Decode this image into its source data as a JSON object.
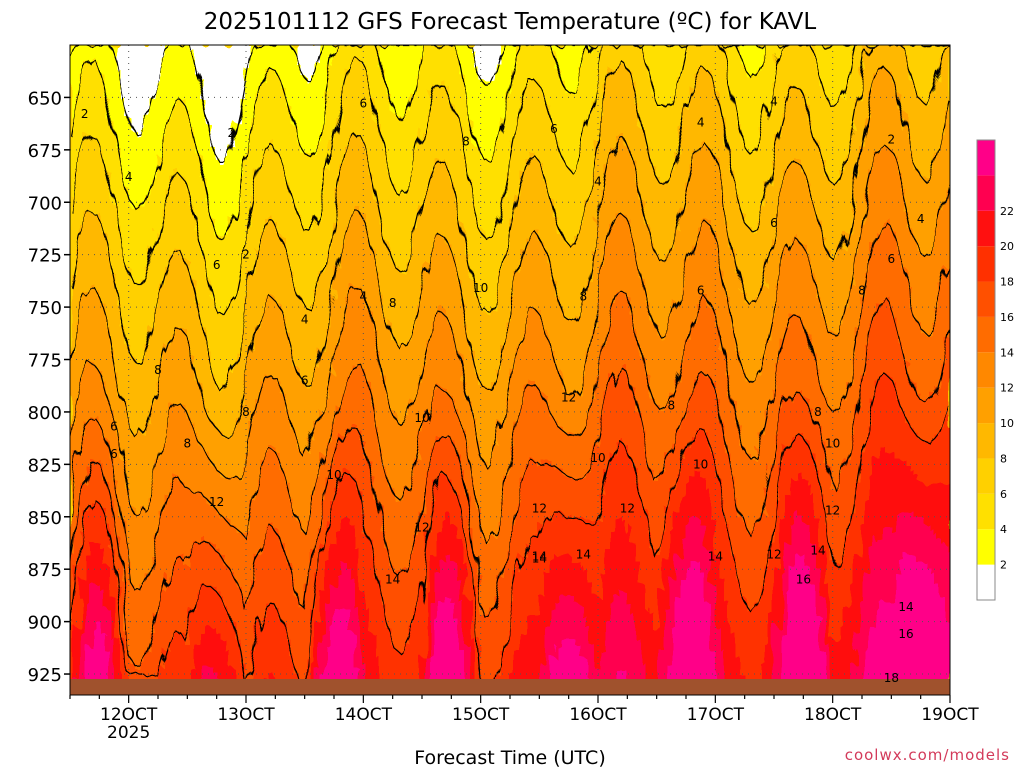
{
  "chart_data": {
    "type": "heatmap",
    "title": "2025101112 GFS Forecast Temperature (ºC) for KAVL",
    "xlabel": "Forecast Time (UTC)",
    "ylabel": "",
    "credit": "coolwx.com/models",
    "x_range": [
      "11 OCT 2025 12Z",
      "19 OCT 2025 00Z"
    ],
    "x_ticks": [
      {
        "label": "12OCT",
        "sublabel": "2025"
      },
      {
        "label": "13OCT",
        "sublabel": ""
      },
      {
        "label": "14OCT",
        "sublabel": ""
      },
      {
        "label": "15OCT",
        "sublabel": ""
      },
      {
        "label": "16OCT",
        "sublabel": ""
      },
      {
        "label": "17OCT",
        "sublabel": ""
      },
      {
        "label": "18OCT",
        "sublabel": ""
      },
      {
        "label": "19OCT",
        "sublabel": ""
      }
    ],
    "y_ticks": [
      "650",
      "675",
      "700",
      "725",
      "750",
      "775",
      "800",
      "825",
      "850",
      "875",
      "900",
      "925"
    ],
    "ylim": [
      625,
      935
    ],
    "y_axis_inverted": true,
    "grid": true,
    "colorbar": {
      "position": "right",
      "labels": [
        "2",
        "4",
        "6",
        "8",
        "10",
        "12",
        "14",
        "16",
        "18",
        "20",
        "22"
      ],
      "colors": [
        "#ffffff",
        "#ffff00",
        "#ffe000",
        "#ffd000",
        "#ffb800",
        "#ffa000",
        "#ff8800",
        "#ff6c00",
        "#ff5000",
        "#ff3000",
        "#ff1010",
        "#ff0050",
        "#ff0088"
      ]
    },
    "contour_interval": 2,
    "contour_labels": [
      {
        "value": "2",
        "time": "11 OCT 15Z",
        "level": 658
      },
      {
        "value": "2",
        "time": "12 OCT 21Z",
        "level": 667
      },
      {
        "value": "2",
        "time": "13 OCT 00Z",
        "level": 725
      },
      {
        "value": "2",
        "time": "18 OCT 12Z",
        "level": 670
      },
      {
        "value": "4",
        "time": "12 OCT 00Z",
        "level": 688
      },
      {
        "value": "4",
        "time": "13 OCT 12Z",
        "level": 756
      },
      {
        "value": "4",
        "time": "14 OCT 00Z",
        "level": 745
      },
      {
        "value": "4",
        "time": "16 OCT 00Z",
        "level": 690
      },
      {
        "value": "4",
        "time": "16 OCT 21Z",
        "level": 662
      },
      {
        "value": "4",
        "time": "17 OCT 12Z",
        "level": 652
      },
      {
        "value": "4",
        "time": "18 OCT 18Z",
        "level": 708
      },
      {
        "value": "6",
        "time": "11 OCT 21Z",
        "level": 820
      },
      {
        "value": "6",
        "time": "11 OCT 21Z",
        "level": 807
      },
      {
        "value": "6",
        "time": "12 OCT 18Z",
        "level": 730
      },
      {
        "value": "6",
        "time": "13 OCT 12Z",
        "level": 785
      },
      {
        "value": "6",
        "time": "14 OCT 00Z",
        "level": 653
      },
      {
        "value": "6",
        "time": "15 OCT 15Z",
        "level": 665
      },
      {
        "value": "6",
        "time": "16 OCT 21Z",
        "level": 742
      },
      {
        "value": "6",
        "time": "17 OCT 12Z",
        "level": 710
      },
      {
        "value": "6",
        "time": "18 OCT 12Z",
        "level": 727
      },
      {
        "value": "8",
        "time": "12 OCT 06Z",
        "level": 780
      },
      {
        "value": "8",
        "time": "12 OCT 12Z",
        "level": 815
      },
      {
        "value": "8",
        "time": "13 OCT 00Z",
        "level": 800
      },
      {
        "value": "8",
        "time": "14 OCT 06Z",
        "level": 748
      },
      {
        "value": "8",
        "time": "14 OCT 21Z",
        "level": 671
      },
      {
        "value": "8",
        "time": "15 OCT 21Z",
        "level": 745
      },
      {
        "value": "8",
        "time": "16 OCT 15Z",
        "level": 797
      },
      {
        "value": "8",
        "time": "17 OCT 21Z",
        "level": 800
      },
      {
        "value": "8",
        "time": "18 OCT 06Z",
        "level": 742
      },
      {
        "value": "10",
        "time": "13 OCT 18Z",
        "level": 830
      },
      {
        "value": "10",
        "time": "14 OCT 12Z",
        "level": 803
      },
      {
        "value": "10",
        "time": "15 OCT 00Z",
        "level": 741
      },
      {
        "value": "10",
        "time": "16 OCT 00Z",
        "level": 822
      },
      {
        "value": "10",
        "time": "16 OCT 21Z",
        "level": 825
      },
      {
        "value": "10",
        "time": "18 OCT 00Z",
        "level": 815
      },
      {
        "value": "12",
        "time": "12 OCT 18Z",
        "level": 843
      },
      {
        "value": "12",
        "time": "14 OCT 12Z",
        "level": 855
      },
      {
        "value": "12",
        "time": "15 OCT 12Z",
        "level": 846
      },
      {
        "value": "12",
        "time": "15 OCT 18Z",
        "level": 793
      },
      {
        "value": "12",
        "time": "16 OCT 06Z",
        "level": 846
      },
      {
        "value": "12",
        "time": "17 OCT 12Z",
        "level": 868
      },
      {
        "value": "12",
        "time": "18 OCT 00Z",
        "level": 847
      },
      {
        "value": "14",
        "time": "14 OCT 06Z",
        "level": 880
      },
      {
        "value": "14",
        "time": "15 OCT 12Z",
        "level": 869
      },
      {
        "value": "14",
        "time": "15 OCT 12Z",
        "level": 870
      },
      {
        "value": "14",
        "time": "15 OCT 21Z",
        "level": 868
      },
      {
        "value": "14",
        "time": "17 OCT 00Z",
        "level": 869
      },
      {
        "value": "14",
        "time": "17 OCT 21Z",
        "level": 866
      },
      {
        "value": "14",
        "time": "18 OCT 15Z",
        "level": 893
      },
      {
        "value": "16",
        "time": "17 OCT 18Z",
        "level": 880
      },
      {
        "value": "16",
        "time": "18 OCT 15Z",
        "level": 906
      },
      {
        "value": "18",
        "time": "18 OCT 12Z",
        "level": 927
      }
    ]
  }
}
